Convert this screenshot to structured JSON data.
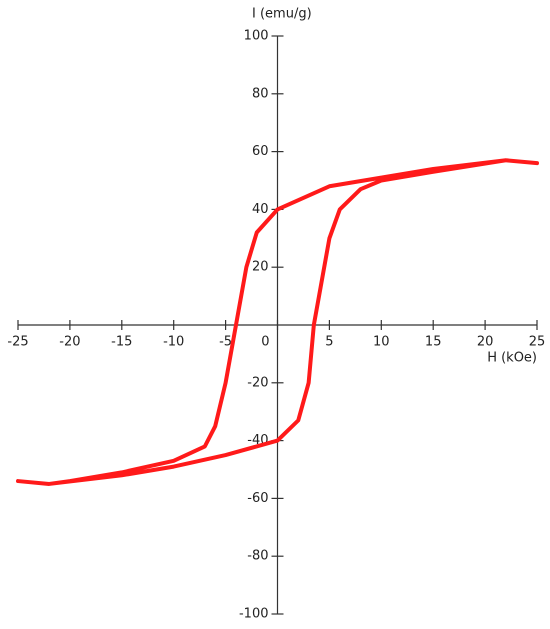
{
  "chart_data": {
    "type": "line",
    "x_label": "H (kOe)",
    "y_label": "I (emu/g)",
    "xlim": [
      -25,
      25
    ],
    "ylim": [
      -100,
      100
    ],
    "xticks": [
      -25,
      -20,
      -15,
      -10,
      -5,
      0,
      5,
      10,
      15,
      20,
      25
    ],
    "yticks": [
      -100,
      -80,
      -60,
      -40,
      -20,
      20,
      40,
      60,
      80,
      100
    ],
    "x": [
      25,
      22,
      15,
      10,
      5,
      0,
      -2,
      -3,
      -4,
      -5,
      -6,
      -7,
      -10,
      -15,
      -20,
      -22,
      -25,
      -22,
      -15,
      -10,
      -5,
      0,
      2,
      3,
      3.5,
      4,
      5,
      6,
      8,
      10,
      15,
      22
    ],
    "series": [
      {
        "color": "#ff1a1a",
        "values": [
          56,
          57,
          54,
          51,
          48,
          40,
          32,
          20,
          0,
          -20,
          -35,
          -42,
          -47,
          -51,
          -54,
          -55,
          -54,
          -55,
          -52,
          -49,
          -45,
          -40,
          -33,
          -20,
          0,
          10,
          30,
          40,
          47,
          50,
          53,
          57
        ]
      }
    ]
  }
}
